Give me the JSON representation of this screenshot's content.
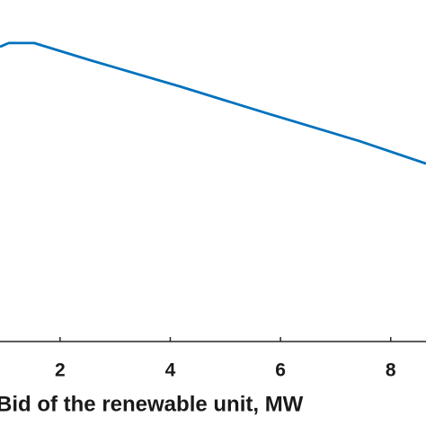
{
  "chart_data": {
    "type": "line",
    "x_label": "Bid of the renewable unit, MW",
    "x": [
      0.91,
      1.07,
      1.53,
      2.54,
      4.17,
      5.8,
      7.43,
      8.64
    ],
    "series": [
      {
        "color": "#0072bd",
        "values": [
          0.863,
          0.874,
          0.874,
          0.824,
          0.747,
          0.666,
          0.587,
          0.521
        ]
      }
    ],
    "xlim": [
      0.91,
      8.64
    ],
    "ylim": [
      0,
      1
    ],
    "xticks": [
      2,
      4,
      6,
      8
    ]
  }
}
